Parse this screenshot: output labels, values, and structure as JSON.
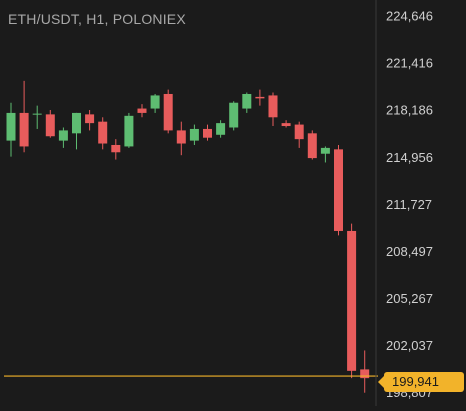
{
  "header": {
    "title": "ETH/USDT, H1, POLONIEX"
  },
  "colors": {
    "up": "#5ebd72",
    "down": "#e85c5c",
    "price_line": "#f2b32a",
    "axis_text": "#d0d0d0",
    "background": "#1b1b1b"
  },
  "chart_data": {
    "type": "candlestick",
    "title": "ETH/USDT, H1, POLONIEX",
    "yaxis": {
      "position": "right",
      "ticks": [
        224646,
        221416,
        218186,
        214956,
        211727,
        208497,
        205267,
        202037,
        198807
      ],
      "tick_labels": [
        "224,646",
        "221,416",
        "218,186",
        "214,956",
        "211,727",
        "208,497",
        "205,267",
        "202,037",
        "198,807"
      ],
      "ylim": [
        198300,
        225200
      ]
    },
    "grid": false,
    "last_price": {
      "value": 199941,
      "label": "199,941"
    },
    "candles": [
      {
        "o": 216100,
        "h": 218700,
        "l": 215000,
        "c": 218000
      },
      {
        "o": 218000,
        "h": 220200,
        "l": 215300,
        "c": 215700
      },
      {
        "o": 217900,
        "h": 218500,
        "l": 216900,
        "c": 217950
      },
      {
        "o": 217900,
        "h": 218200,
        "l": 216300,
        "c": 216400
      },
      {
        "o": 216100,
        "h": 217000,
        "l": 215600,
        "c": 216800
      },
      {
        "o": 216600,
        "h": 218000,
        "l": 215500,
        "c": 218000
      },
      {
        "o": 217900,
        "h": 218200,
        "l": 216800,
        "c": 217300
      },
      {
        "o": 217400,
        "h": 217700,
        "l": 215500,
        "c": 215900
      },
      {
        "o": 215800,
        "h": 216200,
        "l": 214800,
        "c": 215300
      },
      {
        "o": 215700,
        "h": 218000,
        "l": 215600,
        "c": 217800
      },
      {
        "o": 218300,
        "h": 218600,
        "l": 217700,
        "c": 218000
      },
      {
        "o": 218300,
        "h": 219300,
        "l": 218000,
        "c": 219200
      },
      {
        "o": 219300,
        "h": 219600,
        "l": 216600,
        "c": 216800
      },
      {
        "o": 216800,
        "h": 217400,
        "l": 215100,
        "c": 215900
      },
      {
        "o": 216100,
        "h": 217200,
        "l": 215800,
        "c": 216900
      },
      {
        "o": 216900,
        "h": 217200,
        "l": 216100,
        "c": 216300
      },
      {
        "o": 216500,
        "h": 217500,
        "l": 216300,
        "c": 217300
      },
      {
        "o": 217000,
        "h": 218800,
        "l": 216800,
        "c": 218700
      },
      {
        "o": 218300,
        "h": 219400,
        "l": 218000,
        "c": 219300
      },
      {
        "o": 219100,
        "h": 219600,
        "l": 218500,
        "c": 219000
      },
      {
        "o": 219200,
        "h": 219400,
        "l": 217100,
        "c": 217700
      },
      {
        "o": 217300,
        "h": 217500,
        "l": 217000,
        "c": 217100
      },
      {
        "o": 217200,
        "h": 217400,
        "l": 215600,
        "c": 216200
      },
      {
        "o": 216600,
        "h": 216800,
        "l": 214800,
        "c": 214900
      },
      {
        "o": 215200,
        "h": 215700,
        "l": 214600,
        "c": 215600
      },
      {
        "o": 215500,
        "h": 215800,
        "l": 209600,
        "c": 209900
      },
      {
        "o": 209900,
        "h": 210400,
        "l": 199800,
        "c": 200300
      },
      {
        "o": 200400,
        "h": 201700,
        "l": 198800,
        "c": 199800
      }
    ]
  }
}
